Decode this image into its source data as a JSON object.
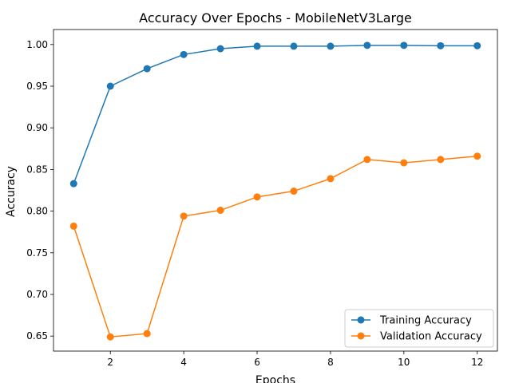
{
  "chart_data": {
    "type": "line",
    "title": "Accuracy Over Epochs - MobileNetV3Large",
    "xlabel": "Epochs",
    "ylabel": "Accuracy",
    "x": [
      1,
      2,
      3,
      4,
      5,
      6,
      7,
      8,
      9,
      10,
      11,
      12
    ],
    "xticks": [
      2,
      4,
      6,
      8,
      10,
      12
    ],
    "yticks": [
      0.65,
      0.7,
      0.75,
      0.8,
      0.85,
      0.9,
      0.95,
      1.0
    ],
    "xlim": [
      0.45,
      12.55
    ],
    "ylim": [
      0.632,
      1.018
    ],
    "grid": false,
    "legend_position": "lower-right",
    "series": [
      {
        "name": "Training Accuracy",
        "color": "#1f77b4",
        "marker": "circle",
        "values": [
          0.833,
          0.95,
          0.971,
          0.988,
          0.995,
          0.998,
          0.998,
          0.998,
          0.999,
          0.999,
          0.9985,
          0.9985
        ]
      },
      {
        "name": "Validation Accuracy",
        "color": "#ff7f0e",
        "marker": "circle",
        "values": [
          0.782,
          0.649,
          0.653,
          0.794,
          0.801,
          0.817,
          0.824,
          0.839,
          0.862,
          0.858,
          0.862,
          0.866
        ]
      }
    ]
  }
}
